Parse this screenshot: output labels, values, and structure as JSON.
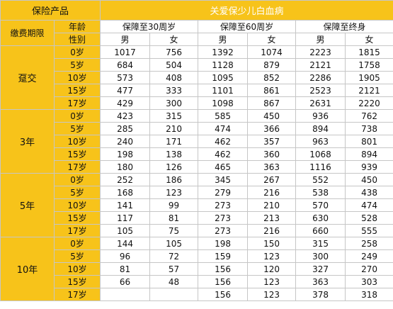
{
  "header": {
    "product_label": "保险产品",
    "title": "关爱保少儿白血病",
    "payment_period_label": "缴费期限",
    "age_label": "年龄",
    "gender_label": "性别",
    "plans": [
      "保障至30周岁",
      "保障至60周岁",
      "保障至终身"
    ],
    "genders": [
      "男",
      "女",
      "男",
      "女",
      "男",
      "女"
    ]
  },
  "groups": [
    {
      "period": "趸交",
      "rows": [
        {
          "age": "0岁",
          "values": [
            "1017",
            "756",
            "1392",
            "1074",
            "2223",
            "1815"
          ]
        },
        {
          "age": "5岁",
          "values": [
            "684",
            "504",
            "1128",
            "879",
            "2121",
            "1758"
          ]
        },
        {
          "age": "10岁",
          "values": [
            "573",
            "408",
            "1095",
            "852",
            "2286",
            "1905"
          ]
        },
        {
          "age": "15岁",
          "values": [
            "477",
            "333",
            "1101",
            "861",
            "2523",
            "2121"
          ]
        },
        {
          "age": "17岁",
          "values": [
            "429",
            "300",
            "1098",
            "867",
            "2631",
            "2220"
          ]
        }
      ]
    },
    {
      "period": "3年",
      "rows": [
        {
          "age": "0岁",
          "values": [
            "423",
            "315",
            "585",
            "450",
            "936",
            "762"
          ]
        },
        {
          "age": "5岁",
          "values": [
            "285",
            "210",
            "474",
            "366",
            "894",
            "738"
          ]
        },
        {
          "age": "10岁",
          "values": [
            "240",
            "171",
            "462",
            "357",
            "963",
            "801"
          ]
        },
        {
          "age": "15岁",
          "values": [
            "198",
            "138",
            "462",
            "360",
            "1068",
            "894"
          ]
        },
        {
          "age": "17岁",
          "values": [
            "180",
            "126",
            "465",
            "363",
            "1116",
            "939"
          ]
        }
      ]
    },
    {
      "period": "5年",
      "rows": [
        {
          "age": "0岁",
          "values": [
            "252",
            "186",
            "345",
            "267",
            "552",
            "450"
          ]
        },
        {
          "age": "5岁",
          "values": [
            "168",
            "123",
            "279",
            "216",
            "538",
            "438"
          ]
        },
        {
          "age": "10岁",
          "values": [
            "141",
            "99",
            "273",
            "210",
            "570",
            "474"
          ]
        },
        {
          "age": "15岁",
          "values": [
            "117",
            "81",
            "273",
            "213",
            "630",
            "528"
          ]
        },
        {
          "age": "17岁",
          "values": [
            "105",
            "75",
            "273",
            "216",
            "660",
            "555"
          ]
        }
      ]
    },
    {
      "period": "10年",
      "rows": [
        {
          "age": "0岁",
          "values": [
            "144",
            "105",
            "198",
            "150",
            "315",
            "258"
          ]
        },
        {
          "age": "5岁",
          "values": [
            "96",
            "72",
            "159",
            "123",
            "300",
            "249"
          ]
        },
        {
          "age": "10岁",
          "values": [
            "81",
            "57",
            "156",
            "120",
            "327",
            "270"
          ]
        },
        {
          "age": "15岁",
          "values": [
            "66",
            "48",
            "156",
            "123",
            "363",
            "303"
          ]
        },
        {
          "age": "17岁",
          "values": [
            "",
            "",
            "156",
            "123",
            "378",
            "318"
          ]
        }
      ]
    }
  ],
  "colors": {
    "accent": "#f7c31a",
    "border": "#c6c6c6"
  }
}
